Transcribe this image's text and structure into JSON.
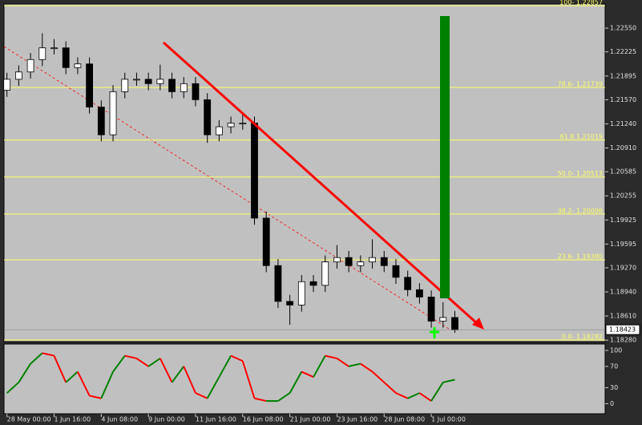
{
  "chart_data": {
    "type": "candlestick",
    "up_color": "#ffffff",
    "down_color": "#000000",
    "xlim": [
      -1,
      203
    ],
    "ylim": [
      1.1826,
      1.2288
    ],
    "xticks": [
      {
        "value": 0,
        "label": "28 May 00:00"
      },
      {
        "value": 16,
        "label": "1 Jun 16:00"
      },
      {
        "value": 32,
        "label": "4 Jun 08:00"
      },
      {
        "value": 48,
        "label": "9 Jun 00:00"
      },
      {
        "value": 64,
        "label": "11 Jun 16:00"
      },
      {
        "value": 80,
        "label": "16 Jun 08:00"
      },
      {
        "value": 96,
        "label": "21 Jun 00:00"
      },
      {
        "value": 112,
        "label": "23 Jun 16:00"
      },
      {
        "value": 128,
        "label": "28 Jun 08:00"
      },
      {
        "value": 144,
        "label": "1 Jul 00:00"
      }
    ],
    "yticks": [
      {
        "value": 1.2255,
        "label": "1.22550"
      },
      1.22225,
      1.21895,
      {
        "value": 1.2157,
        "label": "1.21570"
      },
      {
        "value": 1.2124,
        "label": "1.21240"
      },
      {
        "value": 1.2091,
        "label": "1.20910"
      },
      1.20585,
      1.20255,
      1.19925,
      1.19595,
      {
        "value": 1.1927,
        "label": "1.19270"
      },
      {
        "value": 1.1894,
        "label": "1.18940"
      },
      {
        "value": 1.1861,
        "label": "1.18610"
      },
      {
        "value": 1.1828,
        "label": "1.18280"
      }
    ],
    "x": [
      0,
      4,
      8,
      12,
      16,
      20,
      24,
      28,
      32,
      36,
      40,
      44,
      48,
      52,
      56,
      60,
      64,
      68,
      72,
      76,
      80,
      84,
      88,
      92,
      96,
      100,
      104,
      108,
      112,
      116,
      120,
      124,
      128,
      132,
      136,
      140,
      144,
      148,
      152
    ],
    "open": [
      1.217,
      1.2185,
      1.2195,
      1.2212,
      1.2228,
      1.2228,
      1.2201,
      1.2206,
      1.2147,
      1.2109,
      1.2168,
      1.2185,
      1.2185,
      1.2179,
      1.2185,
      1.2168,
      1.2179,
      1.2157,
      1.2109,
      1.212,
      1.2125,
      1.2125,
      1.1995,
      1.193,
      1.1881,
      1.1876,
      1.1908,
      1.1903,
      1.1935,
      1.1941,
      1.193,
      1.1935,
      1.1941,
      1.193,
      1.1914,
      1.1897,
      1.1887,
      1.1854,
      1.1859
    ],
    "high": [
      1.2194,
      1.2204,
      1.2221,
      1.2248,
      1.224,
      1.2237,
      1.2215,
      1.2215,
      1.2156,
      1.2177,
      1.2194,
      1.2194,
      1.2194,
      1.2205,
      1.2194,
      1.2188,
      1.2188,
      1.2166,
      1.2129,
      1.2134,
      1.2138,
      1.2134,
      1.2004,
      1.1939,
      1.189,
      1.1917,
      1.1917,
      1.1944,
      1.1958,
      1.195,
      1.1944,
      1.1966,
      1.195,
      1.1939,
      1.1923,
      1.1906,
      1.1896,
      1.188,
      1.1868
    ],
    "low": [
      1.2161,
      1.2176,
      1.2186,
      1.2203,
      1.2219,
      1.2192,
      1.2192,
      1.2138,
      1.21,
      1.21,
      1.2159,
      1.2176,
      1.217,
      1.217,
      1.2159,
      1.2159,
      1.2148,
      1.2098,
      1.21,
      1.2111,
      1.2116,
      1.1986,
      1.1921,
      1.1872,
      1.1849,
      1.1867,
      1.1894,
      1.1894,
      1.1926,
      1.1921,
      1.1921,
      1.1926,
      1.1921,
      1.1905,
      1.1888,
      1.1878,
      1.1845,
      1.1845,
      1.1838
    ],
    "close": [
      1.2185,
      1.2195,
      1.2212,
      1.2228,
      1.2228,
      1.2201,
      1.2206,
      1.2147,
      1.2109,
      1.2168,
      1.2185,
      1.2185,
      1.2179,
      1.2185,
      1.2168,
      1.2179,
      1.2157,
      1.2109,
      1.212,
      1.2125,
      1.2125,
      1.1995,
      1.193,
      1.1881,
      1.1876,
      1.1908,
      1.1903,
      1.1935,
      1.1941,
      1.193,
      1.1935,
      1.1941,
      1.193,
      1.1914,
      1.1897,
      1.1887,
      1.1854,
      1.1859,
      1.1842
    ],
    "last_price": 1.18423,
    "levels_color": "#ffff66",
    "levels": [
      {
        "label": "100- 1.22857",
        "value": 1.22857
      },
      {
        "label": "78.6- 1.21739",
        "value": 1.21739
      },
      {
        "label": "61.8 1.21019",
        "value": 1.21019
      },
      {
        "label": "50.0- 1.20513",
        "value": 1.20513
      },
      {
        "label": "38.2- 1.20006",
        "value": 1.20006
      },
      {
        "label": "23.6- 1.19380",
        "value": 1.1938
      },
      {
        "label": "0.0- 1.18282",
        "value": 1.18282
      }
    ],
    "oscillator": {
      "ylim": [
        -19,
        112
      ],
      "yticks": [
        100,
        70,
        30,
        0
      ],
      "up_color": "#008000",
      "down_color": "#ff0000",
      "values": [
        20,
        40,
        75,
        95,
        90,
        40,
        60,
        15,
        10,
        60,
        90,
        85,
        70,
        85,
        40,
        70,
        20,
        10,
        50,
        90,
        80,
        10,
        5,
        5,
        20,
        60,
        50,
        90,
        85,
        70,
        75,
        60,
        40,
        20,
        10,
        20,
        5,
        40,
        45
      ]
    }
  }
}
